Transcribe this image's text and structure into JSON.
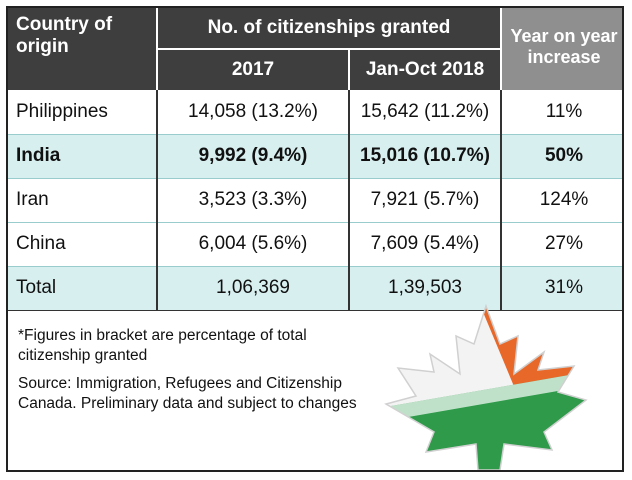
{
  "table": {
    "headers": {
      "country": "Country of origin",
      "granted": "No. of citizenships granted",
      "year_2017": "2017",
      "year_2018": "Jan-Oct 2018",
      "yoy": "Year on year increase"
    },
    "rows": [
      {
        "country": "Philippines",
        "v2017": "14,058 (13.2%)",
        "v2018": "15,642 (11.2%)",
        "yoy": "11%"
      },
      {
        "country": "India",
        "v2017": "9,992 (9.4%)",
        "v2018": "15,016 (10.7%)",
        "yoy": "50%"
      },
      {
        "country": "Iran",
        "v2017": "3,523 (3.3%)",
        "v2018": "7,921 (5.7%)",
        "yoy": "124%"
      },
      {
        "country": "China",
        "v2017": "6,004 (5.6%)",
        "v2018": "7,609 (5.4%)",
        "yoy": "27%"
      },
      {
        "country": "Total",
        "v2017": "1,06,369",
        "v2018": "1,39,503",
        "yoy": "31%"
      }
    ]
  },
  "notes": {
    "footnote": "*Figures in bracket are percentage of total citizenship granted",
    "source": "Source: Immigration, Refugees and Citizenship Canada. Preliminary data and subject to changes"
  },
  "colors": {
    "header_dark": "#3e3e3e",
    "header_grey": "#8f8f8f",
    "row_shade": "#d8eff0",
    "leaf_saffron": "#e8682a",
    "leaf_green": "#2e9a4a"
  }
}
